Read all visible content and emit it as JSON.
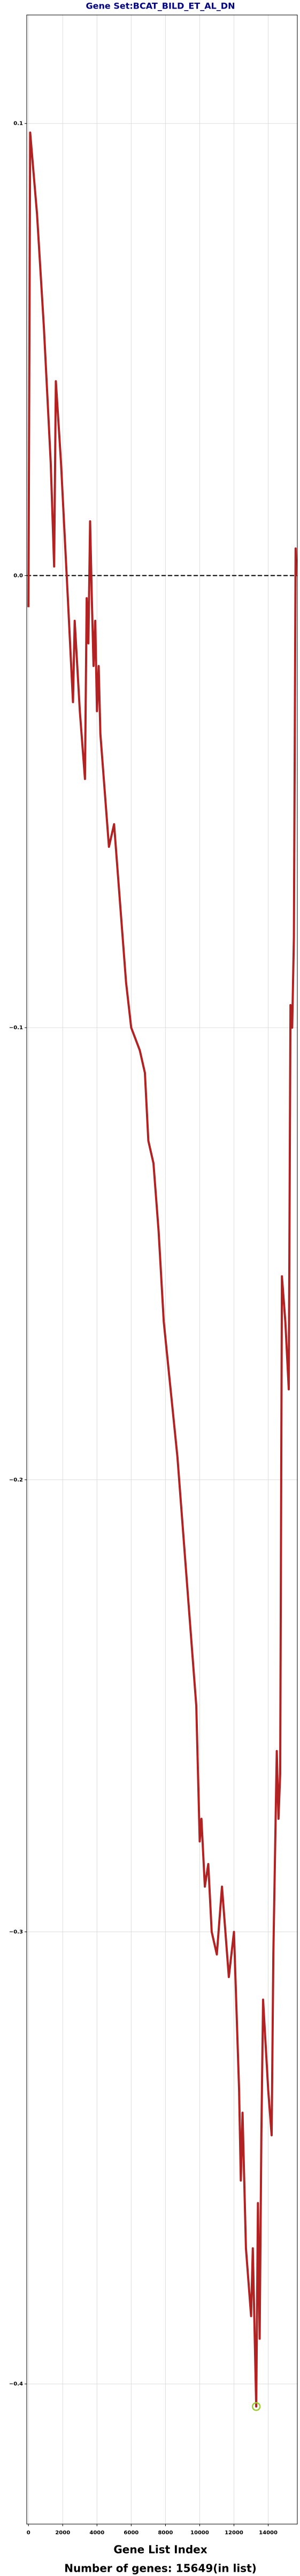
{
  "chart_data": {
    "type": "line",
    "title": "Gene Set:BCAT_BILD_ET_AL_DN",
    "xlabel": "Gene List Index",
    "footnote": "Number of genes: 15649(in list)",
    "x": [
      0,
      100,
      500,
      900,
      1300,
      1500,
      1600,
      1900,
      2300,
      2600,
      2700,
      3000,
      3300,
      3400,
      3500,
      3600,
      3700,
      3800,
      3900,
      4000,
      4100,
      4200,
      4400,
      4700,
      5000,
      5300,
      5500,
      5700,
      6000,
      6500,
      6800,
      7000,
      7300,
      7600,
      7900,
      8300,
      8700,
      9000,
      9400,
      9800,
      10000,
      10100,
      10300,
      10500,
      10700,
      11000,
      11300,
      11700,
      12000,
      12300,
      12400,
      12500,
      12700,
      13000,
      13100,
      13300,
      13400,
      13500,
      13600,
      13700,
      14000,
      14200,
      14300,
      14500,
      14600,
      14700,
      14800,
      15000,
      15200,
      15300,
      15400,
      15500,
      15600,
      15649
    ],
    "series": [
      {
        "color": "#b22222",
        "values": [
          -0.007,
          0.098,
          0.08,
          0.055,
          0.025,
          0.002,
          0.043,
          0.025,
          -0.005,
          -0.028,
          -0.01,
          -0.03,
          -0.045,
          -0.005,
          -0.015,
          0.012,
          -0.005,
          -0.02,
          -0.01,
          -0.03,
          -0.02,
          -0.035,
          -0.045,
          -0.06,
          -0.055,
          -0.07,
          -0.08,
          -0.09,
          -0.1,
          -0.105,
          -0.11,
          -0.125,
          -0.13,
          -0.145,
          -0.165,
          -0.18,
          -0.195,
          -0.21,
          -0.23,
          -0.25,
          -0.28,
          -0.275,
          -0.29,
          -0.285,
          -0.3,
          -0.305,
          -0.29,
          -0.31,
          -0.3,
          -0.335,
          -0.355,
          -0.34,
          -0.37,
          -0.385,
          -0.37,
          -0.405,
          -0.36,
          -0.39,
          -0.345,
          -0.315,
          -0.335,
          -0.345,
          -0.305,
          -0.26,
          -0.275,
          -0.265,
          -0.155,
          -0.165,
          -0.18,
          -0.095,
          -0.1,
          -0.08,
          0.006,
          0
        ]
      }
    ],
    "highlight_index": 55,
    "highlight_color": "#9acd32",
    "hline": 0,
    "xlim": [
      -100,
      15700
    ],
    "ylim": [
      -0.431,
      0.124
    ],
    "xticks": [
      0,
      2000,
      4000,
      6000,
      8000,
      10000,
      12000,
      14000
    ],
    "yticks": [
      {
        "value": 0.1,
        "label": "0.1"
      },
      {
        "value": 0,
        "label": "0.0"
      },
      {
        "value": -0.1,
        "label": "−0.1"
      },
      {
        "value": -0.2,
        "label": "−0.2"
      },
      {
        "value": -0.3,
        "label": "−0.3"
      },
      {
        "value": -0.4,
        "label": "−0.4"
      }
    ],
    "grid": true
  }
}
